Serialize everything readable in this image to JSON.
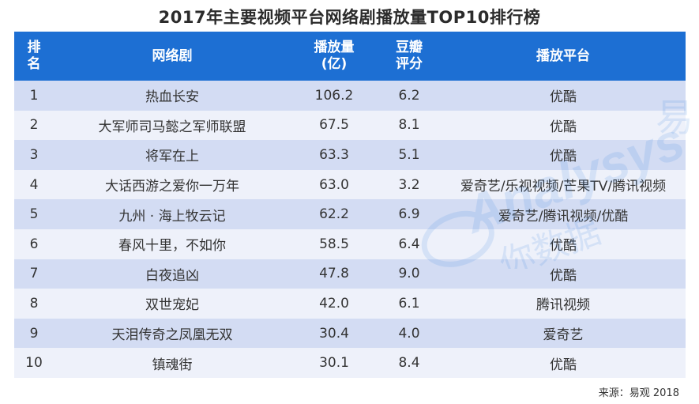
{
  "title": "2017年主要视频平台网络剧播放量TOP10排行榜",
  "headers": {
    "rank": "排\n名",
    "drama": "网络剧",
    "views": "播放量\n(亿)",
    "score": "豆瓣\n评分",
    "platform": "播放平台"
  },
  "rows": [
    {
      "rank": "1",
      "drama": "热血长安",
      "views": "106.2",
      "score": "6.2",
      "platform": "优酷"
    },
    {
      "rank": "2",
      "drama": "大军师司马懿之军师联盟",
      "views": "67.5",
      "score": "8.1",
      "platform": "优酷"
    },
    {
      "rank": "3",
      "drama": "将军在上",
      "views": "63.3",
      "score": "5.1",
      "platform": "优酷"
    },
    {
      "rank": "4",
      "drama": "大话西游之爱你一万年",
      "views": "63.0",
      "score": "3.2",
      "platform": "爱奇艺/乐视视频/芒果TV/腾讯视频"
    },
    {
      "rank": "5",
      "drama": "九州 · 海上牧云记",
      "views": "62.2",
      "score": "6.9",
      "platform": "爱奇艺/腾讯视频/优酷"
    },
    {
      "rank": "6",
      "drama": "春风十里，不如你",
      "views": "58.5",
      "score": "6.4",
      "platform": "优酷"
    },
    {
      "rank": "7",
      "drama": "白夜追凶",
      "views": "47.8",
      "score": "9.0",
      "platform": "优酷"
    },
    {
      "rank": "8",
      "drama": "双世宠妃",
      "views": "42.0",
      "score": "6.1",
      "platform": "腾讯视频"
    },
    {
      "rank": "9",
      "drama": "天泪传奇之凤凰无双",
      "views": "30.4",
      "score": "4.0",
      "platform": "爱奇艺"
    },
    {
      "rank": "10",
      "drama": "镇魂街",
      "views": "30.1",
      "score": "8.4",
      "platform": "优酷"
    }
  ],
  "source": "来源：易观 2018",
  "watermark": {
    "text": "Analysys",
    "cn": "你数据",
    "cn2": "易",
    "color": "#2d7de0"
  }
}
